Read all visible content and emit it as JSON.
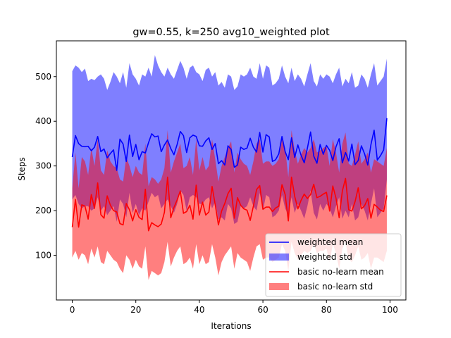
{
  "chart_data": {
    "type": "line",
    "title": "gw=0.55, k=250 avg10_weighted plot",
    "xlabel": "Iterations",
    "ylabel": "Steps",
    "xlim": [
      -5,
      105
    ],
    "ylim": [
      0,
      580
    ],
    "xticks": [
      0,
      20,
      40,
      60,
      80,
      100
    ],
    "yticks": [
      100,
      200,
      300,
      400,
      500
    ],
    "grid": false,
    "legend_position": "lower-right",
    "x_start": 0,
    "series": [
      {
        "name": "weighted mean",
        "kind": "line",
        "color": "#0000ff",
        "values": [
          320,
          368,
          350,
          344,
          343,
          344,
          334,
          342,
          366,
          332,
          338,
          318,
          328,
          336,
          290,
          360,
          349,
          310,
          369,
          321,
          348,
          314,
          332,
          329,
          352,
          372,
          365,
          367,
          332,
          347,
          358,
          339,
          325,
          348,
          377,
          368,
          330,
          363,
          369,
          366,
          345,
          344,
          356,
          363,
          337,
          350,
          305,
          312,
          302,
          345,
          337,
          297,
          302,
          342,
          337,
          340,
          362,
          342,
          331,
          375,
          331,
          370,
          365,
          310,
          314,
          327,
          366,
          332,
          314,
          363,
          319,
          347,
          324,
          307,
          340,
          376,
          322,
          306,
          348,
          326,
          346,
          335,
          312,
          343,
          361,
          307,
          330,
          311,
          349,
          303,
          312,
          345,
          327,
          302,
          348,
          380,
          313,
          323,
          336,
          407,
          326,
          357,
          313
        ],
        "values_note": "one value per iteration 0..99 (extra values ignored)"
      },
      {
        "name": "weighted std",
        "kind": "band",
        "color": "#0000ff",
        "opacity": 0.5,
        "upper": [
          512,
          525,
          520,
          510,
          518,
          490,
          495,
          492,
          500,
          505,
          495,
          470,
          488,
          510,
          500,
          485,
          510,
          475,
          530,
          505,
          495,
          480,
          505,
          500,
          520,
          500,
          548,
          525,
          510,
          500,
          520,
          505,
          495,
          515,
          535,
          520,
          495,
          520,
          525,
          510,
          505,
          490,
          515,
          520,
          500,
          510,
          480,
          488,
          475,
          505,
          500,
          470,
          478,
          505,
          500,
          505,
          520,
          500,
          495,
          530,
          495,
          525,
          520,
          480,
          485,
          495,
          525,
          500,
          485,
          520,
          490,
          505,
          495,
          478,
          505,
          530,
          490,
          478,
          505,
          495,
          505,
          500,
          485,
          505,
          520,
          478,
          495,
          485,
          510,
          475,
          480,
          505,
          495,
          475,
          505,
          530,
          480,
          490,
          500,
          540,
          495,
          515,
          490
        ],
        "lower": [
          225,
          235,
          215,
          205,
          210,
          210,
          200,
          205,
          230,
          200,
          210,
          190,
          200,
          210,
          175,
          225,
          215,
          185,
          240,
          195,
          215,
          190,
          205,
          200,
          220,
          240,
          230,
          235,
          205,
          215,
          225,
          210,
          195,
          215,
          245,
          235,
          200,
          230,
          235,
          230,
          215,
          215,
          225,
          230,
          205,
          220,
          180,
          185,
          178,
          215,
          205,
          170,
          175,
          210,
          205,
          210,
          230,
          210,
          200,
          240,
          200,
          235,
          230,
          185,
          190,
          200,
          235,
          205,
          190,
          230,
          195,
          215,
          200,
          182,
          210,
          245,
          195,
          180,
          215,
          200,
          215,
          205,
          185,
          210,
          230,
          182,
          200,
          185,
          215,
          178,
          185,
          215,
          200,
          178,
          215,
          250,
          185,
          195,
          205,
          270,
          200,
          225,
          190
        ]
      },
      {
        "name": "basic no-learn mean",
        "kind": "line",
        "color": "#ff0000",
        "values": [
          163,
          225,
          163,
          213,
          210,
          181,
          236,
          205,
          262,
          191,
          183,
          233,
          212,
          200,
          197,
          171,
          168,
          216,
          202,
          177,
          202,
          185,
          180,
          248,
          155,
          173,
          168,
          164,
          170,
          196,
          275,
          184,
          207,
          224,
          244,
          194,
          198,
          212,
          181,
          257,
          190,
          219,
          190,
          197,
          254,
          213,
          168,
          199,
          216,
          238,
          250,
          183,
          229,
          212,
          204,
          201,
          178,
          210,
          247,
          256,
          203,
          208,
          208,
          198,
          206,
          210,
          258,
          236,
          177,
          275,
          232,
          204,
          223,
          237,
          227,
          236,
          259,
          229,
          232,
          237,
          241,
          199,
          255,
          228,
          184,
          244,
          272,
          202,
          199,
          220,
          251,
          204,
          211,
          227,
          183,
          214,
          208,
          201,
          198,
          234,
          198,
          210,
          198
        ],
        "values_note": "one value per iteration 0..99 (extra values ignored)"
      },
      {
        "name": "basic no-learn std",
        "kind": "band",
        "color": "#ff0000",
        "opacity": 0.5,
        "upper": [
          250,
          330,
          250,
          320,
          310,
          280,
          340,
          300,
          360,
          290,
          280,
          335,
          310,
          300,
          295,
          270,
          265,
          320,
          300,
          275,
          300,
          285,
          280,
          350,
          255,
          275,
          270,
          260,
          270,
          295,
          380,
          285,
          310,
          330,
          350,
          295,
          300,
          320,
          280,
          360,
          290,
          320,
          290,
          300,
          360,
          315,
          265,
          300,
          320,
          340,
          355,
          285,
          330,
          315,
          305,
          300,
          280,
          310,
          350,
          360,
          305,
          310,
          310,
          300,
          305,
          315,
          360,
          340,
          275,
          380,
          335,
          305,
          325,
          340,
          330,
          340,
          360,
          330,
          335,
          340,
          345,
          300,
          360,
          330,
          285,
          350,
          375,
          305,
          300,
          325,
          355,
          305,
          315,
          330,
          285,
          315,
          310,
          305,
          300,
          340,
          300,
          315,
          300
        ],
        "lower": [
          95,
          110,
          90,
          105,
          100,
          80,
          115,
          95,
          120,
          85,
          80,
          110,
          100,
          90,
          85,
          70,
          60,
          100,
          90,
          70,
          90,
          75,
          70,
          120,
          45,
          65,
          60,
          55,
          60,
          85,
          130,
          75,
          95,
          110,
          120,
          80,
          85,
          95,
          70,
          125,
          80,
          100,
          80,
          85,
          125,
          95,
          55,
          85,
          100,
          110,
          120,
          70,
          105,
          95,
          90,
          85,
          65,
          95,
          120,
          125,
          90,
          95,
          95,
          85,
          90,
          95,
          125,
          110,
          65,
          130,
          105,
          90,
          100,
          110,
          105,
          110,
          125,
          105,
          110,
          110,
          115,
          85,
          125,
          105,
          70,
          115,
          130,
          90,
          85,
          100,
          120,
          90,
          95,
          105,
          70,
          95,
          95,
          90,
          85,
          110,
          85,
          95,
          85
        ]
      }
    ]
  }
}
